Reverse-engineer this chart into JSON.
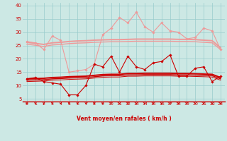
{
  "background_color": "#cce8e4",
  "grid_color": "#99cccc",
  "xlabel": "Vent moyen/en rafales ( km/h )",
  "xlabel_color": "#cc0000",
  "tick_color": "#cc0000",
  "xlim": [
    -0.5,
    23.5
  ],
  "ylim": [
    4,
    41
  ],
  "yticks": [
    5,
    10,
    15,
    20,
    25,
    30,
    35,
    40
  ],
  "xticks": [
    0,
    1,
    2,
    3,
    4,
    5,
    6,
    7,
    8,
    9,
    10,
    11,
    12,
    13,
    14,
    15,
    16,
    17,
    18,
    19,
    20,
    21,
    22,
    23
  ],
  "series": [
    {
      "x": [
        0,
        1,
        2,
        3,
        4,
        5,
        6,
        7,
        8,
        9,
        10,
        11,
        12,
        13,
        14,
        15,
        16,
        17,
        18,
        19,
        20,
        21,
        22,
        23
      ],
      "y": [
        26.5,
        26.0,
        23.5,
        28.5,
        27.0,
        15.0,
        15.5,
        16.0,
        18.0,
        29.0,
        31.5,
        35.5,
        33.5,
        37.5,
        32.0,
        30.0,
        33.5,
        30.5,
        30.0,
        27.5,
        28.0,
        31.5,
        30.5,
        23.5
      ],
      "color": "#ee9999",
      "linewidth": 0.8,
      "marker": "D",
      "markersize": 1.8
    },
    {
      "x": [
        0,
        1,
        2,
        3,
        4,
        5,
        6,
        7,
        8,
        9,
        10,
        11,
        12,
        13,
        14,
        15,
        16,
        17,
        18,
        19,
        20,
        21,
        22,
        23
      ],
      "y": [
        26.2,
        25.8,
        25.4,
        26.0,
        26.2,
        26.5,
        26.7,
        26.8,
        27.0,
        27.1,
        27.2,
        27.2,
        27.3,
        27.4,
        27.4,
        27.4,
        27.4,
        27.4,
        27.3,
        27.3,
        27.2,
        27.0,
        26.8,
        24.2
      ],
      "color": "#ee9999",
      "linewidth": 1.4,
      "marker": null,
      "markersize": 0
    },
    {
      "x": [
        0,
        1,
        2,
        3,
        4,
        5,
        6,
        7,
        8,
        9,
        10,
        11,
        12,
        13,
        14,
        15,
        16,
        17,
        18,
        19,
        20,
        21,
        22,
        23
      ],
      "y": [
        25.5,
        25.1,
        24.6,
        25.2,
        25.4,
        25.7,
        25.9,
        26.0,
        26.2,
        26.3,
        26.4,
        26.4,
        26.5,
        26.6,
        26.6,
        26.6,
        26.6,
        26.6,
        26.5,
        26.5,
        26.4,
        26.2,
        26.0,
        23.5
      ],
      "color": "#ee9999",
      "linewidth": 1.0,
      "marker": null,
      "markersize": 0
    },
    {
      "x": [
        0,
        1,
        2,
        3,
        4,
        5,
        6,
        7,
        8,
        9,
        10,
        11,
        12,
        13,
        14,
        15,
        16,
        17,
        18,
        19,
        20,
        21,
        22,
        23
      ],
      "y": [
        12.5,
        13.0,
        11.5,
        11.0,
        10.5,
        6.5,
        6.5,
        10.0,
        18.0,
        17.0,
        21.0,
        15.0,
        21.0,
        17.0,
        16.0,
        18.5,
        19.0,
        21.5,
        13.5,
        13.5,
        16.5,
        17.0,
        11.5,
        13.5
      ],
      "color": "#cc0000",
      "linewidth": 0.8,
      "marker": "D",
      "markersize": 1.8
    },
    {
      "x": [
        0,
        1,
        2,
        3,
        4,
        5,
        6,
        7,
        8,
        9,
        10,
        11,
        12,
        13,
        14,
        15,
        16,
        17,
        18,
        19,
        20,
        21,
        22,
        23
      ],
      "y": [
        12.5,
        12.6,
        12.7,
        13.0,
        13.1,
        13.3,
        13.4,
        13.5,
        13.8,
        14.1,
        14.2,
        14.2,
        14.5,
        14.5,
        14.6,
        14.6,
        14.6,
        14.6,
        14.5,
        14.5,
        14.4,
        14.3,
        14.2,
        13.0
      ],
      "color": "#cc0000",
      "linewidth": 1.4,
      "marker": null,
      "markersize": 0
    },
    {
      "x": [
        0,
        1,
        2,
        3,
        4,
        5,
        6,
        7,
        8,
        9,
        10,
        11,
        12,
        13,
        14,
        15,
        16,
        17,
        18,
        19,
        20,
        21,
        22,
        23
      ],
      "y": [
        12.0,
        12.1,
        12.2,
        12.5,
        12.6,
        12.8,
        12.9,
        13.0,
        13.3,
        13.6,
        13.7,
        13.7,
        14.0,
        14.0,
        14.1,
        14.1,
        14.1,
        14.1,
        14.0,
        14.0,
        13.9,
        13.8,
        13.7,
        12.5
      ],
      "color": "#cc0000",
      "linewidth": 1.0,
      "marker": null,
      "markersize": 0
    },
    {
      "x": [
        0,
        1,
        2,
        3,
        4,
        5,
        6,
        7,
        8,
        9,
        10,
        11,
        12,
        13,
        14,
        15,
        16,
        17,
        18,
        19,
        20,
        21,
        22,
        23
      ],
      "y": [
        11.5,
        11.6,
        11.7,
        12.0,
        12.1,
        12.3,
        12.4,
        12.5,
        12.8,
        13.1,
        13.2,
        13.2,
        13.5,
        13.5,
        13.6,
        13.6,
        13.6,
        13.6,
        13.5,
        13.5,
        13.4,
        13.3,
        13.2,
        12.0
      ],
      "color": "#cc0000",
      "linewidth": 0.7,
      "marker": null,
      "markersize": 0
    }
  ]
}
